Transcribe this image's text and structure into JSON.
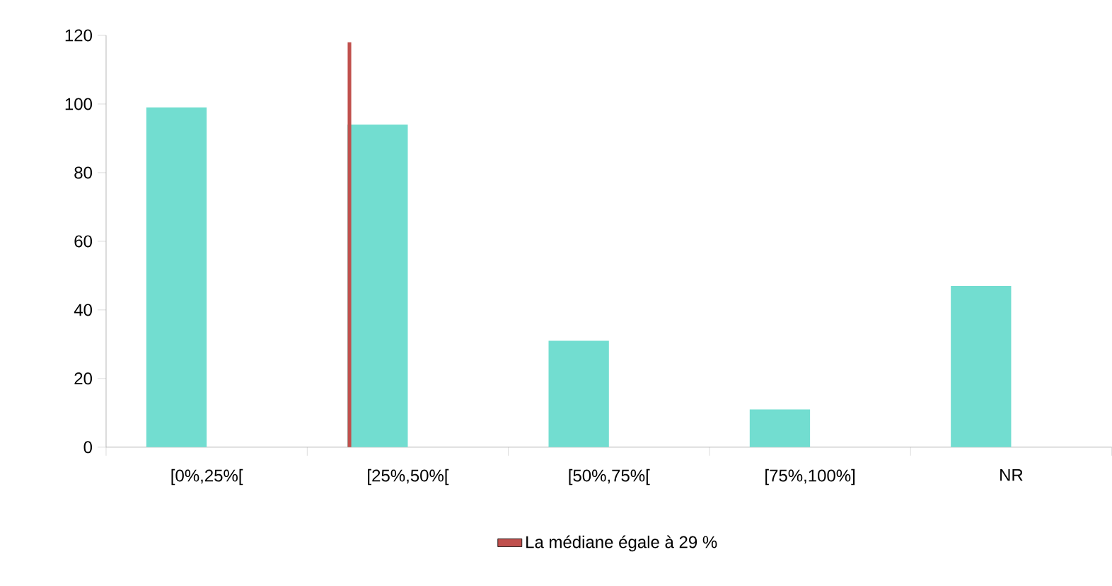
{
  "chart_data": {
    "type": "bar",
    "categories": [
      "[0%,25%[",
      "[25%,50%[",
      "[50%,75%[",
      "[75%,100%]",
      "NR"
    ],
    "series": [
      {
        "color": "#72ddd0",
        "values": [
          99,
          94,
          31,
          11,
          47
        ]
      },
      {
        "name": "La médiane égale à 29 %",
        "color": "#c0504d",
        "values": [
          null,
          118,
          null,
          null,
          null
        ]
      }
    ],
    "ylim": [
      0,
      120
    ],
    "yticks": [
      0,
      20,
      40,
      60,
      80,
      100,
      120
    ],
    "grid": false,
    "legend": "bottom"
  }
}
